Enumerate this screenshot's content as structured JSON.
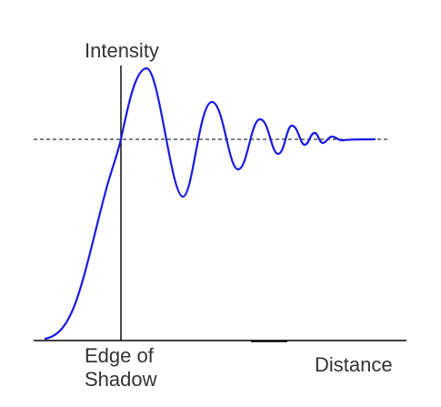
{
  "labels": {
    "y_axis": "Intensity",
    "edge_line1": "Edge of",
    "edge_line2": "Shadow",
    "x_axis": "Distance"
  },
  "colors": {
    "curve": "#1a1adf",
    "axes": "#000000",
    "reference": "#000000",
    "text": "#333333"
  },
  "chart_data": {
    "type": "line",
    "description_kind": "Fresnel diffraction intensity at a straight edge",
    "xlabel": "Distance",
    "ylabel": "Intensity",
    "edge_marker_label": "Edge of Shadow",
    "reference_level": "dashed horizontal line at unobstructed intensity",
    "grid": false
  }
}
